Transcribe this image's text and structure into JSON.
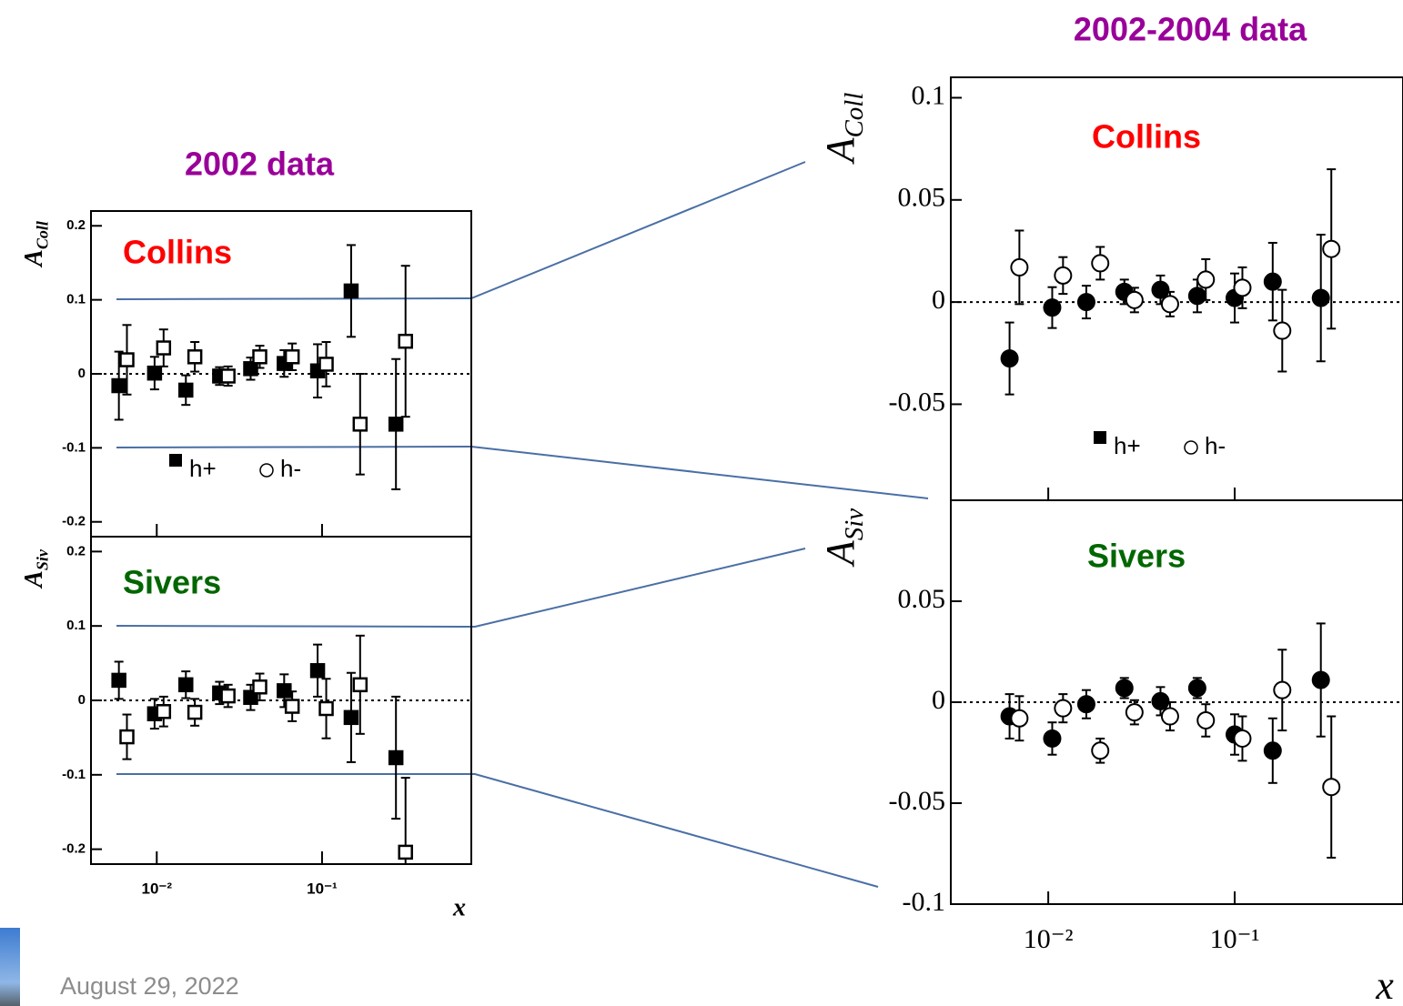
{
  "slide": {
    "left_title": "2002 data",
    "right_title": "2002-2004 data",
    "date": "August 29, 2022"
  },
  "chart_data": [
    {
      "type": "scatter",
      "label": "Collins",
      "label_color": "#ff0000",
      "y_label": "A",
      "y_label_subscript": "Coll",
      "xscale": "log",
      "xlim": [
        0.004,
        0.8
      ],
      "xticks": [
        0.01,
        0.1
      ],
      "xtick_labels": false,
      "ylim": [
        -0.22,
        0.22
      ],
      "yticks": [
        0.2,
        0.1,
        0,
        -0.1,
        -0.2
      ],
      "legend": true,
      "series": [
        {
          "name": "h+",
          "color": "#000000",
          "marker": "square",
          "filled": true,
          "x": [
            0.0059,
            0.0097,
            0.015,
            0.024,
            0.037,
            0.059,
            0.094,
            0.15,
            0.28
          ],
          "values": [
            -0.016,
            0.001,
            -0.022,
            -0.003,
            0.007,
            0.014,
            0.004,
            0.112,
            -0.068
          ],
          "errors": [
            0.046,
            0.022,
            0.02,
            0.012,
            0.015,
            0.018,
            0.036,
            0.062,
            0.088
          ]
        },
        {
          "name": "h-",
          "color": "#000000",
          "marker": "square",
          "filled": false,
          "x": [
            0.0066,
            0.011,
            0.017,
            0.027,
            0.042,
            0.066,
            0.106,
            0.17,
            0.32
          ],
          "values": [
            0.019,
            0.035,
            0.023,
            -0.003,
            0.023,
            0.023,
            0.013,
            -0.068,
            0.044
          ],
          "errors": [
            0.047,
            0.025,
            0.02,
            0.013,
            0.015,
            0.018,
            0.03,
            0.068,
            0.102
          ]
        }
      ]
    },
    {
      "type": "scatter",
      "label": "Sivers",
      "label_color": "#006600",
      "y_label": "A",
      "y_label_subscript": "Siv",
      "x_label": "x",
      "xscale": "log",
      "xlim": [
        0.004,
        0.8
      ],
      "xticks": [
        {
          "value": 0.01,
          "label": "10⁻²"
        },
        {
          "value": 0.1,
          "label": "10⁻¹"
        }
      ],
      "xtick_labels": true,
      "ylim": [
        -0.22,
        0.22
      ],
      "yticks": [
        0.2,
        0.1,
        0,
        -0.1,
        -0.2
      ],
      "legend": false,
      "series": [
        {
          "name": "h+",
          "color": "#000000",
          "marker": "square",
          "filled": true,
          "x": [
            0.0059,
            0.0097,
            0.015,
            0.024,
            0.037,
            0.059,
            0.094,
            0.15,
            0.28
          ],
          "values": [
            0.027,
            -0.018,
            0.021,
            0.01,
            0.004,
            0.013,
            0.04,
            -0.023,
            -0.077
          ],
          "errors": [
            0.025,
            0.02,
            0.018,
            0.015,
            0.017,
            0.022,
            0.035,
            0.06,
            0.082
          ]
        },
        {
          "name": "h-",
          "color": "#000000",
          "marker": "square",
          "filled": false,
          "x": [
            0.0066,
            0.011,
            0.017,
            0.027,
            0.042,
            0.066,
            0.106,
            0.17,
            0.32
          ],
          "values": [
            -0.049,
            -0.015,
            -0.016,
            0.006,
            0.018,
            -0.008,
            -0.011,
            0.021,
            -0.204
          ],
          "errors": [
            0.03,
            0.02,
            0.018,
            0.015,
            0.018,
            0.02,
            0.04,
            0.066,
            0.1
          ]
        }
      ]
    },
    {
      "type": "scatter",
      "label": "Collins",
      "label_color": "#ff0000",
      "y_label": "A",
      "y_label_subscript": "Coll",
      "xscale": "log",
      "xlim": [
        0.003,
        0.8
      ],
      "xticks": [
        0.01,
        0.1
      ],
      "xtick_labels": false,
      "ylim": [
        -0.097,
        0.11
      ],
      "yticks": [
        0.1,
        0.05,
        0,
        -0.05
      ],
      "legend": true,
      "series": [
        {
          "name": "h+",
          "color": "#000000",
          "marker": "circle",
          "filled": true,
          "x": [
            0.0062,
            0.0105,
            0.016,
            0.0256,
            0.04,
            0.063,
            0.1,
            0.16,
            0.29
          ],
          "values": [
            -0.0276,
            -0.0027,
            0,
            0.005,
            0.006,
            0.003,
            0.002,
            0.01,
            0.002
          ],
          "errors": [
            0.0176,
            0.01,
            0.008,
            0.006,
            0.007,
            0.008,
            0.012,
            0.019,
            0.031
          ]
        },
        {
          "name": "h-",
          "color": "#000000",
          "marker": "circle",
          "filled": false,
          "x": [
            0.007,
            0.012,
            0.019,
            0.029,
            0.045,
            0.07,
            0.11,
            0.18,
            0.33
          ],
          "values": [
            0.017,
            0.013,
            0.019,
            0.001,
            -0.001,
            0.011,
            0.007,
            -0.014,
            0.026
          ],
          "errors": [
            0.018,
            0.009,
            0.008,
            0.006,
            0.006,
            0.01,
            0.01,
            0.02,
            0.039
          ]
        }
      ]
    },
    {
      "type": "scatter",
      "label": "Sivers",
      "label_color": "#006600",
      "y_label": "A",
      "y_label_subscript": "Siv",
      "x_label": "x",
      "xscale": "log",
      "xlim": [
        0.003,
        0.8
      ],
      "xticks": [
        {
          "value": 0.01,
          "label": "10⁻²"
        },
        {
          "value": 0.1,
          "label": "10⁻¹"
        }
      ],
      "xtick_labels": true,
      "ylim": [
        -0.1,
        0.1
      ],
      "yticks": [
        0.05,
        0,
        -0.05,
        -0.1
      ],
      "legend": false,
      "series": [
        {
          "name": "h+",
          "color": "#000000",
          "marker": "circle",
          "filled": true,
          "x": [
            0.0062,
            0.0105,
            0.016,
            0.0256,
            0.04,
            0.063,
            0.1,
            0.16,
            0.29
          ],
          "values": [
            -0.007,
            -0.018,
            -0.001,
            0.007,
            0.0005,
            0.007,
            -0.016,
            -0.024,
            0.011
          ],
          "errors": [
            0.011,
            0.008,
            0.007,
            0.005,
            0.007,
            0.005,
            0.01,
            0.016,
            0.028
          ]
        },
        {
          "name": "h-",
          "color": "#000000",
          "marker": "circle",
          "filled": false,
          "x": [
            0.007,
            0.012,
            0.019,
            0.029,
            0.045,
            0.07,
            0.11,
            0.18,
            0.33
          ],
          "values": [
            -0.008,
            -0.003,
            -0.024,
            -0.005,
            -0.007,
            -0.009,
            -0.018,
            0.006,
            -0.042
          ],
          "errors": [
            0.011,
            0.007,
            0.006,
            0.006,
            0.007,
            0.008,
            0.011,
            0.02,
            0.035
          ]
        }
      ]
    }
  ]
}
